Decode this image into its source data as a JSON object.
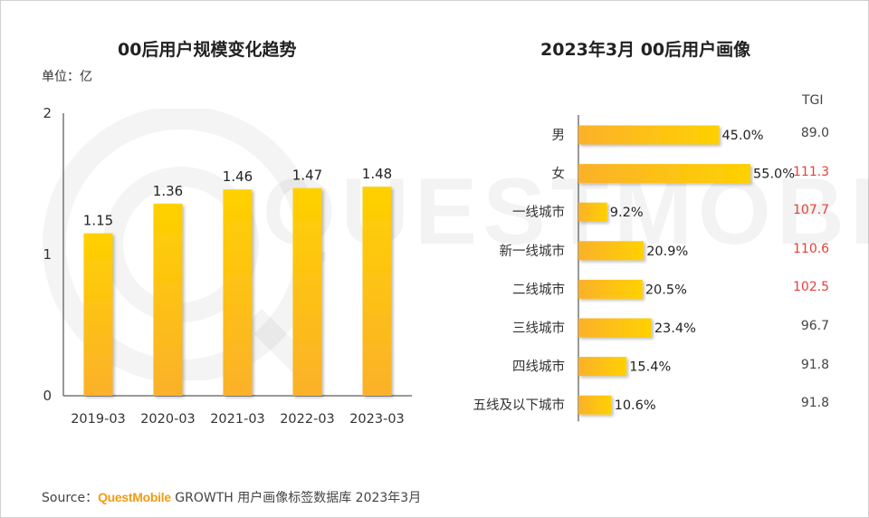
{
  "source": {
    "label": "Source：",
    "brand": "QuestMobile",
    "text": " GROWTH 用户画像标签数据库 2023年3月"
  },
  "colors": {
    "bar_top": "#FFD100",
    "bar_bottom": "#FBB12A",
    "tgi_high": "#E8403A",
    "tgi_normal": "#444444",
    "axis": "#333333"
  },
  "chart_data": [
    {
      "type": "bar",
      "title": "00后用户规模变化趋势",
      "ylabel": "单位：亿",
      "xlabel": "",
      "categories": [
        "2019-03",
        "2020-03",
        "2021-03",
        "2022-03",
        "2023-03"
      ],
      "values": [
        1.15,
        1.36,
        1.46,
        1.47,
        1.48
      ],
      "value_labels": [
        "1.15",
        "1.36",
        "1.46",
        "1.47",
        "1.48"
      ],
      "ylim": [
        0,
        2
      ],
      "yticks": [
        "0",
        "1",
        "2"
      ],
      "grid": false
    },
    {
      "type": "bar",
      "orientation": "horizontal",
      "title": "2023年3月 00后用户画像",
      "categories": [
        "男",
        "女",
        "一线城市",
        "新一线城市",
        "二线城市",
        "三线城市",
        "四线城市",
        "五线及以下城市"
      ],
      "values": [
        45.0,
        55.0,
        9.2,
        20.9,
        20.5,
        23.4,
        15.4,
        10.6
      ],
      "value_labels": [
        "45.0%",
        "55.0%",
        "9.2%",
        "20.9%",
        "20.5%",
        "23.4%",
        "15.4%",
        "10.6%"
      ],
      "xlim": [
        0,
        55
      ],
      "tgi": {
        "header": "TGI",
        "values": [
          "89.0",
          "111.3",
          "107.7",
          "110.6",
          "102.5",
          "96.7",
          "91.8",
          "91.8"
        ],
        "highlight": [
          false,
          true,
          true,
          true,
          true,
          false,
          false,
          false
        ]
      }
    }
  ]
}
